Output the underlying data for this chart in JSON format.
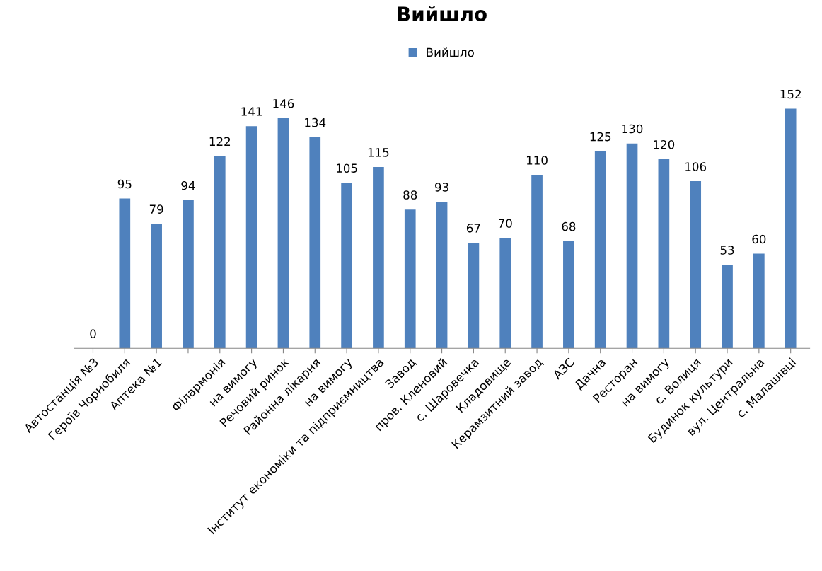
{
  "chart_data": {
    "type": "bar",
    "title": "Вийшло",
    "categories": [
      "Автостанція №3",
      "Героїв Чорнобиля",
      "Аптека №1",
      null,
      "Філармонія",
      "на вимогу",
      "Речовий ринок",
      "Районна лікарня",
      "на вимогу",
      "Інститут економіки та підприємництва",
      "Завод",
      "пров. Кленовий",
      "с. Шаровечка",
      "Кладовище",
      "Керамзитний завод",
      "АЗС",
      "Дачна",
      "Ресторан",
      "на вимогу",
      "с. Волиця",
      "Будинок культури",
      "вул. Центральна",
      "с. Малашівці"
    ],
    "series": [
      {
        "name": "Вийшло",
        "color": "#4f81bd",
        "values": [
          0,
          95,
          79,
          94,
          122,
          141,
          146,
          134,
          105,
          115,
          88,
          93,
          67,
          70,
          110,
          68,
          125,
          130,
          120,
          106,
          53,
          60,
          152
        ]
      }
    ],
    "data_labels": true,
    "legend": "top",
    "grid": false
  }
}
